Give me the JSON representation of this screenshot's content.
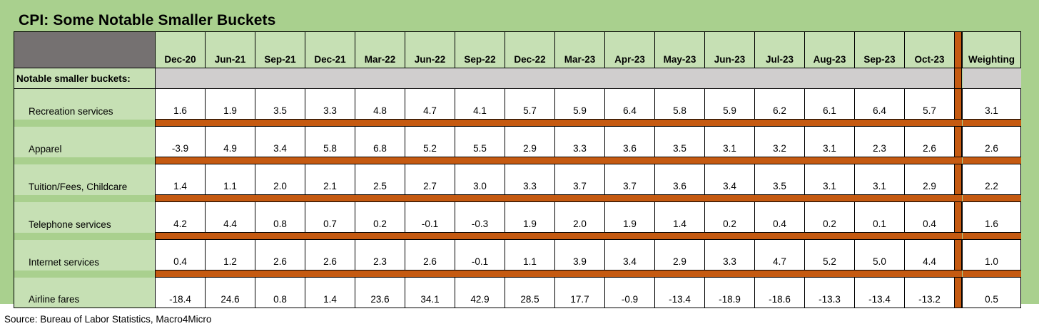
{
  "title": "CPI: Some Notable Smaller Buckets",
  "columns": [
    "Dec-20",
    "Jun-21",
    "Sep-21",
    "Dec-21",
    "Mar-22",
    "Jun-22",
    "Sep-22",
    "Dec-22",
    "Mar-23",
    "Apr-23",
    "May-23",
    "Jun-23",
    "Jul-23",
    "Aug-23",
    "Sep-23",
    "Oct-23"
  ],
  "weighting_header": "Weighting",
  "section_label": "Notable smaller buckets:",
  "rows": [
    {
      "label": "Recreation services",
      "values": [
        "1.6",
        "1.9",
        "3.5",
        "3.3",
        "4.8",
        "4.7",
        "4.1",
        "5.7",
        "5.9",
        "6.4",
        "5.8",
        "5.9",
        "6.2",
        "6.1",
        "6.4",
        "5.7"
      ],
      "weighting": "3.1"
    },
    {
      "label": "Apparel",
      "values": [
        "-3.9",
        "4.9",
        "3.4",
        "5.8",
        "6.8",
        "5.2",
        "5.5",
        "2.9",
        "3.3",
        "3.6",
        "3.5",
        "3.1",
        "3.2",
        "3.1",
        "2.3",
        "2.6"
      ],
      "weighting": "2.6"
    },
    {
      "label": "Tuition/Fees, Childcare",
      "values": [
        "1.4",
        "1.1",
        "2.0",
        "2.1",
        "2.5",
        "2.7",
        "3.0",
        "3.3",
        "3.7",
        "3.7",
        "3.6",
        "3.4",
        "3.5",
        "3.1",
        "3.1",
        "2.9"
      ],
      "weighting": "2.2"
    },
    {
      "label": "Telephone services",
      "values": [
        "4.2",
        "4.4",
        "0.8",
        "0.7",
        "0.2",
        "-0.1",
        "-0.3",
        "1.9",
        "2.0",
        "1.9",
        "1.4",
        "0.2",
        "0.4",
        "0.2",
        "0.1",
        "0.4"
      ],
      "weighting": "1.6"
    },
    {
      "label": "Internet services",
      "values": [
        "0.4",
        "1.2",
        "2.6",
        "2.6",
        "2.3",
        "2.6",
        "-0.1",
        "1.1",
        "3.9",
        "3.4",
        "2.9",
        "3.3",
        "4.7",
        "5.2",
        "5.0",
        "4.4"
      ],
      "weighting": "1.0"
    },
    {
      "label": "Airline fares",
      "values": [
        "-18.4",
        "24.6",
        "0.8",
        "1.4",
        "23.6",
        "34.1",
        "42.9",
        "28.5",
        "17.7",
        "-0.9",
        "-13.4",
        "-18.9",
        "-18.6",
        "-13.3",
        "-13.4",
        "-13.2"
      ],
      "weighting": "0.5"
    }
  ],
  "source": "Source: Bureau of Labor Statistics, Macro4Micro",
  "colors": {
    "frame_green": "#a9d08e",
    "label_green": "#c6e0b4",
    "separator_orange": "#c55a11",
    "section_gray": "#d0cece",
    "corner_gray": "#757171"
  }
}
